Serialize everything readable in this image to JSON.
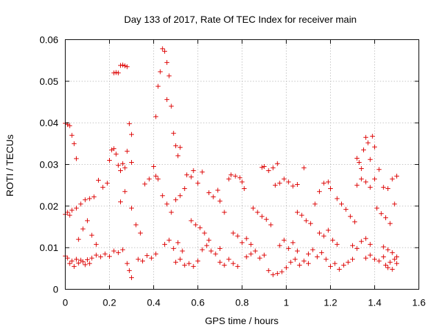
{
  "chart_data": {
    "type": "scatter",
    "title": "Day 133 of 2017, Rate Of TEC Index for receiver main",
    "xlabel": "GPS time / hours",
    "ylabel": "ROTI / TECUs",
    "xlim": [
      0,
      1.6
    ],
    "ylim": [
      0,
      0.06
    ],
    "xticks": [
      0,
      0.2,
      0.4,
      0.6,
      0.8,
      1.0,
      1.2,
      1.4,
      1.6
    ],
    "xtick_labels": [
      "0",
      "0.2",
      "0.4",
      "0.6",
      "0.8",
      "1",
      "1.2",
      "1.4",
      "1.6"
    ],
    "yticks": [
      0,
      0.01,
      0.02,
      0.03,
      0.04,
      0.05,
      0.06
    ],
    "ytick_labels": [
      "0",
      "0.01",
      "0.02",
      "0.03",
      "0.04",
      "0.05",
      "0.06"
    ],
    "grid": true,
    "marker": "+",
    "color": "#dd0000",
    "series": [
      {
        "name": "ROTI",
        "points": [
          [
            0.0,
            0.0399
          ],
          [
            0.01,
            0.0396
          ],
          [
            0.02,
            0.0393
          ],
          [
            0.03,
            0.037
          ],
          [
            0.04,
            0.035
          ],
          [
            0.05,
            0.0314
          ],
          [
            0.0,
            0.018
          ],
          [
            0.01,
            0.0185
          ],
          [
            0.02,
            0.0178
          ],
          [
            0.03,
            0.019
          ],
          [
            0.05,
            0.0195
          ],
          [
            0.0,
            0.008
          ],
          [
            0.01,
            0.0075
          ],
          [
            0.02,
            0.0062
          ],
          [
            0.03,
            0.0068
          ],
          [
            0.04,
            0.0055
          ],
          [
            0.05,
            0.0072
          ],
          [
            0.06,
            0.0063
          ],
          [
            0.07,
            0.007
          ],
          [
            0.08,
            0.0066
          ],
          [
            0.09,
            0.0059
          ],
          [
            0.1,
            0.0071
          ],
          [
            0.11,
            0.0062
          ],
          [
            0.06,
            0.012
          ],
          [
            0.08,
            0.0145
          ],
          [
            0.1,
            0.0165
          ],
          [
            0.12,
            0.013
          ],
          [
            0.14,
            0.0108
          ],
          [
            0.07,
            0.0205
          ],
          [
            0.09,
            0.0215
          ],
          [
            0.11,
            0.0218
          ],
          [
            0.13,
            0.0222
          ],
          [
            0.15,
            0.0262
          ],
          [
            0.12,
            0.0075
          ],
          [
            0.14,
            0.0082
          ],
          [
            0.16,
            0.0078
          ],
          [
            0.18,
            0.0085
          ],
          [
            0.2,
            0.0079
          ],
          [
            0.17,
            0.0245
          ],
          [
            0.19,
            0.0255
          ],
          [
            0.2,
            0.031
          ],
          [
            0.21,
            0.0335
          ],
          [
            0.22,
            0.0338
          ],
          [
            0.23,
            0.0325
          ],
          [
            0.24,
            0.0298
          ],
          [
            0.25,
            0.0285
          ],
          [
            0.26,
            0.0302
          ],
          [
            0.27,
            0.0292
          ],
          [
            0.28,
            0.0332
          ],
          [
            0.22,
            0.052
          ],
          [
            0.23,
            0.0521
          ],
          [
            0.24,
            0.052
          ],
          [
            0.25,
            0.0538
          ],
          [
            0.26,
            0.0539
          ],
          [
            0.27,
            0.0537
          ],
          [
            0.28,
            0.0535
          ],
          [
            0.29,
            0.0398
          ],
          [
            0.3,
            0.0372
          ],
          [
            0.3,
            0.0305
          ],
          [
            0.22,
            0.0092
          ],
          [
            0.24,
            0.0088
          ],
          [
            0.26,
            0.0095
          ],
          [
            0.28,
            0.0062
          ],
          [
            0.29,
            0.0045
          ],
          [
            0.3,
            0.0028
          ],
          [
            0.25,
            0.021
          ],
          [
            0.27,
            0.0235
          ],
          [
            0.3,
            0.0195
          ],
          [
            0.32,
            0.0155
          ],
          [
            0.34,
            0.0135
          ],
          [
            0.33,
            0.0072
          ],
          [
            0.35,
            0.0068
          ],
          [
            0.37,
            0.0081
          ],
          [
            0.39,
            0.0075
          ],
          [
            0.41,
            0.0085
          ],
          [
            0.36,
            0.0253
          ],
          [
            0.38,
            0.0265
          ],
          [
            0.4,
            0.0295
          ],
          [
            0.41,
            0.0272
          ],
          [
            0.42,
            0.0265
          ],
          [
            0.41,
            0.0415
          ],
          [
            0.42,
            0.0488
          ],
          [
            0.43,
            0.0523
          ],
          [
            0.44,
            0.0578
          ],
          [
            0.45,
            0.0572
          ],
          [
            0.46,
            0.0545
          ],
          [
            0.47,
            0.0513
          ],
          [
            0.46,
            0.0456
          ],
          [
            0.48,
            0.044
          ],
          [
            0.49,
            0.0375
          ],
          [
            0.5,
            0.0345
          ],
          [
            0.51,
            0.0321
          ],
          [
            0.52,
            0.0341
          ],
          [
            0.44,
            0.0225
          ],
          [
            0.46,
            0.0205
          ],
          [
            0.48,
            0.0185
          ],
          [
            0.5,
            0.0215
          ],
          [
            0.52,
            0.0225
          ],
          [
            0.54,
            0.0242
          ],
          [
            0.45,
            0.0108
          ],
          [
            0.47,
            0.0118
          ],
          [
            0.49,
            0.0098
          ],
          [
            0.51,
            0.0112
          ],
          [
            0.53,
            0.0092
          ],
          [
            0.5,
            0.0065
          ],
          [
            0.52,
            0.0072
          ],
          [
            0.54,
            0.0058
          ],
          [
            0.56,
            0.0062
          ],
          [
            0.58,
            0.0055
          ],
          [
            0.6,
            0.0068
          ],
          [
            0.55,
            0.0275
          ],
          [
            0.57,
            0.027
          ],
          [
            0.58,
            0.0285
          ],
          [
            0.6,
            0.0255
          ],
          [
            0.62,
            0.0282
          ],
          [
            0.57,
            0.0165
          ],
          [
            0.59,
            0.0155
          ],
          [
            0.61,
            0.0148
          ],
          [
            0.63,
            0.0135
          ],
          [
            0.65,
            0.0118
          ],
          [
            0.62,
            0.0095
          ],
          [
            0.64,
            0.0105
          ],
          [
            0.66,
            0.0092
          ],
          [
            0.68,
            0.0085
          ],
          [
            0.7,
            0.0098
          ],
          [
            0.65,
            0.0232
          ],
          [
            0.67,
            0.0222
          ],
          [
            0.69,
            0.0238
          ],
          [
            0.7,
            0.0212
          ],
          [
            0.72,
            0.0185
          ],
          [
            0.7,
            0.0065
          ],
          [
            0.72,
            0.0058
          ],
          [
            0.74,
            0.0072
          ],
          [
            0.76,
            0.0062
          ],
          [
            0.78,
            0.0055
          ],
          [
            0.74,
            0.0265
          ],
          [
            0.75,
            0.0275
          ],
          [
            0.77,
            0.0272
          ],
          [
            0.79,
            0.0268
          ],
          [
            0.8,
            0.0258
          ],
          [
            0.81,
            0.0242
          ],
          [
            0.76,
            0.0135
          ],
          [
            0.78,
            0.0128
          ],
          [
            0.8,
            0.0112
          ],
          [
            0.82,
            0.0122
          ],
          [
            0.84,
            0.0108
          ],
          [
            0.82,
            0.0078
          ],
          [
            0.84,
            0.0085
          ],
          [
            0.86,
            0.0092
          ],
          [
            0.88,
            0.0075
          ],
          [
            0.9,
            0.0082
          ],
          [
            0.85,
            0.0195
          ],
          [
            0.87,
            0.0185
          ],
          [
            0.89,
            0.0175
          ],
          [
            0.91,
            0.0168
          ],
          [
            0.93,
            0.0155
          ],
          [
            0.89,
            0.0293
          ],
          [
            0.9,
            0.0295
          ],
          [
            0.92,
            0.0285
          ],
          [
            0.94,
            0.0292
          ],
          [
            0.96,
            0.0302
          ],
          [
            0.92,
            0.0045
          ],
          [
            0.94,
            0.0035
          ],
          [
            0.96,
            0.0038
          ],
          [
            0.98,
            0.0042
          ],
          [
            1.0,
            0.0052
          ],
          [
            0.95,
            0.025
          ],
          [
            0.97,
            0.0255
          ],
          [
            0.99,
            0.0265
          ],
          [
            1.01,
            0.0258
          ],
          [
            1.03,
            0.0248
          ],
          [
            1.05,
            0.0252
          ],
          [
            0.97,
            0.0105
          ],
          [
            0.99,
            0.0118
          ],
          [
            1.01,
            0.0098
          ],
          [
            1.03,
            0.0112
          ],
          [
            1.05,
            0.0092
          ],
          [
            1.02,
            0.0065
          ],
          [
            1.04,
            0.0072
          ],
          [
            1.06,
            0.0058
          ],
          [
            1.08,
            0.0068
          ],
          [
            1.1,
            0.0062
          ],
          [
            1.05,
            0.0185
          ],
          [
            1.07,
            0.0178
          ],
          [
            1.08,
            0.0292
          ],
          [
            1.09,
            0.0165
          ],
          [
            1.11,
            0.0158
          ],
          [
            1.1,
            0.0085
          ],
          [
            1.12,
            0.0095
          ],
          [
            1.14,
            0.0078
          ],
          [
            1.16,
            0.0088
          ],
          [
            1.18,
            0.0072
          ],
          [
            1.13,
            0.0205
          ],
          [
            1.15,
            0.0235
          ],
          [
            1.17,
            0.0255
          ],
          [
            1.19,
            0.0258
          ],
          [
            1.2,
            0.0242
          ],
          [
            1.15,
            0.0135
          ],
          [
            1.17,
            0.0128
          ],
          [
            1.19,
            0.0142
          ],
          [
            1.21,
            0.0118
          ],
          [
            1.23,
            0.0108
          ],
          [
            1.2,
            0.0055
          ],
          [
            1.22,
            0.0062
          ],
          [
            1.24,
            0.0048
          ],
          [
            1.26,
            0.0058
          ],
          [
            1.28,
            0.0065
          ],
          [
            1.3,
            0.0072
          ],
          [
            1.23,
            0.0218
          ],
          [
            1.25,
            0.0205
          ],
          [
            1.27,
            0.0192
          ],
          [
            1.29,
            0.0175
          ],
          [
            1.31,
            0.0162
          ],
          [
            1.3,
            0.0105
          ],
          [
            1.32,
            0.0098
          ],
          [
            1.34,
            0.0115
          ],
          [
            1.36,
            0.0122
          ],
          [
            1.38,
            0.0108
          ],
          [
            1.32,
            0.0315
          ],
          [
            1.33,
            0.0305
          ],
          [
            1.34,
            0.029
          ],
          [
            1.35,
            0.0335
          ],
          [
            1.36,
            0.0365
          ],
          [
            1.37,
            0.0352
          ],
          [
            1.38,
            0.0312
          ],
          [
            1.39,
            0.0368
          ],
          [
            1.4,
            0.0342
          ],
          [
            1.32,
            0.025
          ],
          [
            1.34,
            0.0265
          ],
          [
            1.36,
            0.0258
          ],
          [
            1.38,
            0.0245
          ],
          [
            1.4,
            0.0265
          ],
          [
            1.42,
            0.0288
          ],
          [
            1.36,
            0.0075
          ],
          [
            1.38,
            0.0082
          ],
          [
            1.4,
            0.0072
          ],
          [
            1.42,
            0.0068
          ],
          [
            1.44,
            0.0078
          ],
          [
            1.41,
            0.0195
          ],
          [
            1.43,
            0.0182
          ],
          [
            1.45,
            0.0172
          ],
          [
            1.47,
            0.0158
          ],
          [
            1.49,
            0.0205
          ],
          [
            1.44,
            0.0245
          ],
          [
            1.46,
            0.0242
          ],
          [
            1.48,
            0.0265
          ],
          [
            1.5,
            0.0272
          ],
          [
            1.45,
            0.0058
          ],
          [
            1.46,
            0.0052
          ],
          [
            1.47,
            0.0065
          ],
          [
            1.48,
            0.0048
          ],
          [
            1.49,
            0.0072
          ],
          [
            1.5,
            0.0062
          ],
          [
            1.44,
            0.0102
          ],
          [
            1.46,
            0.0095
          ],
          [
            1.48,
            0.0088
          ],
          [
            1.5,
            0.0078
          ]
        ]
      }
    ]
  }
}
